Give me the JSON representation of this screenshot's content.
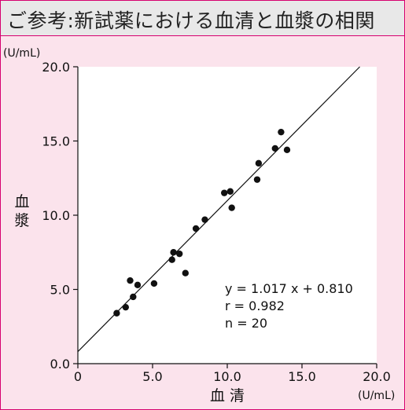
{
  "header": {
    "title": "ご参考:新試薬における血清と血漿の相関"
  },
  "chart_data": {
    "type": "scatter",
    "title": "",
    "xlabel": "血清",
    "ylabel": "血漿",
    "xunit": "(U/mL)",
    "yunit": "(U/mL)",
    "xlim": [
      0,
      20
    ],
    "ylim": [
      0,
      20
    ],
    "xticks": [
      "0",
      "5.0",
      "10.0",
      "15.0",
      "20.0"
    ],
    "yticks": [
      "0.0",
      "5.0",
      "10.0",
      "15.0",
      "20.0"
    ],
    "points": [
      {
        "x": 2.6,
        "y": 3.4
      },
      {
        "x": 3.2,
        "y": 3.8
      },
      {
        "x": 3.7,
        "y": 4.5
      },
      {
        "x": 3.5,
        "y": 5.6
      },
      {
        "x": 4.0,
        "y": 5.3
      },
      {
        "x": 5.1,
        "y": 5.4
      },
      {
        "x": 6.3,
        "y": 7.0
      },
      {
        "x": 6.4,
        "y": 7.5
      },
      {
        "x": 6.8,
        "y": 7.4
      },
      {
        "x": 7.2,
        "y": 6.1
      },
      {
        "x": 7.9,
        "y": 9.1
      },
      {
        "x": 8.5,
        "y": 9.7
      },
      {
        "x": 9.8,
        "y": 11.5
      },
      {
        "x": 10.2,
        "y": 11.6
      },
      {
        "x": 10.3,
        "y": 10.5
      },
      {
        "x": 12.0,
        "y": 12.4
      },
      {
        "x": 12.1,
        "y": 13.5
      },
      {
        "x": 13.2,
        "y": 14.5
      },
      {
        "x": 13.6,
        "y": 15.6
      },
      {
        "x": 14.0,
        "y": 14.4
      }
    ],
    "regression": {
      "slope": 1.017,
      "intercept": 0.81
    },
    "annotations": [
      "y = 1.017 x + 0.810",
      "r = 0.982",
      "n = 20"
    ],
    "grid": false
  },
  "colors": {
    "frame": "#d6006f",
    "background": "#fbe3ec",
    "plot": "#ffffff",
    "header": "#e8e8e8"
  }
}
